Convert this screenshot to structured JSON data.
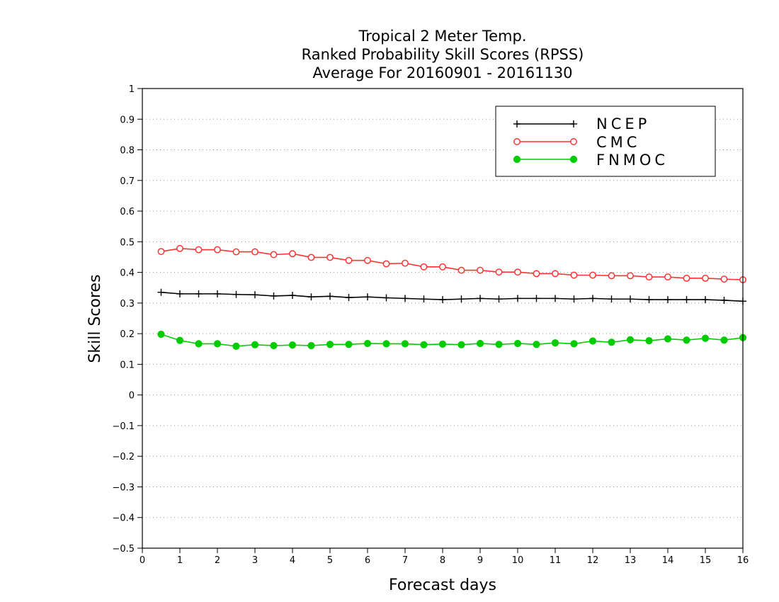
{
  "chart_data": {
    "type": "line",
    "title": [
      "Tropical 2 Meter Temp.",
      "Ranked Probability Skill Scores (RPSS)",
      "Average For 20160901 - 20161130"
    ],
    "xlabel": "Forecast days",
    "ylabel": "Skill Scores",
    "xlim": [
      0,
      16
    ],
    "ylim": [
      -0.5,
      1
    ],
    "xticks": [
      "0",
      "1",
      "2",
      "3",
      "4",
      "5",
      "6",
      "7",
      "8",
      "9",
      "10",
      "11",
      "12",
      "13",
      "14",
      "15",
      "16"
    ],
    "yticks": [
      "−0.5",
      "−0.4",
      "−0.3",
      "−0.2",
      "−0.1",
      "0",
      "0.1",
      "0.2",
      "0.3",
      "0.4",
      "0.5",
      "0.6",
      "0.7",
      "0.8",
      "0.9",
      "1"
    ],
    "grid": "horizontal-dotted",
    "legend_position": "top-right",
    "x": [
      0.5,
      1,
      1.5,
      2,
      2.5,
      3,
      3.5,
      4,
      4.5,
      5,
      5.5,
      6,
      6.5,
      7,
      7.5,
      8,
      8.5,
      9,
      9.5,
      10,
      10.5,
      11,
      11.5,
      12,
      12.5,
      13,
      13.5,
      14,
      14.5,
      15,
      15.5,
      16
    ],
    "series": [
      {
        "name": "NCEP",
        "color": "#000000",
        "marker": "plus",
        "values": [
          0.335,
          0.33,
          0.33,
          0.33,
          0.328,
          0.327,
          0.323,
          0.325,
          0.32,
          0.322,
          0.318,
          0.32,
          0.317,
          0.315,
          0.313,
          0.311,
          0.313,
          0.315,
          0.313,
          0.315,
          0.315,
          0.315,
          0.313,
          0.315,
          0.313,
          0.313,
          0.311,
          0.311,
          0.311,
          0.311,
          0.309,
          0.306
        ]
      },
      {
        "name": "CMC",
        "color": "#ff3333",
        "marker": "open-circle",
        "values": [
          0.468,
          0.478,
          0.474,
          0.474,
          0.467,
          0.467,
          0.458,
          0.461,
          0.449,
          0.449,
          0.439,
          0.439,
          0.428,
          0.43,
          0.418,
          0.418,
          0.407,
          0.407,
          0.401,
          0.401,
          0.396,
          0.396,
          0.391,
          0.391,
          0.389,
          0.389,
          0.385,
          0.385,
          0.381,
          0.381,
          0.378,
          0.376
        ]
      },
      {
        "name": "FNMOC",
        "color": "#00cc00",
        "marker": "filled-circle",
        "values": [
          0.198,
          0.178,
          0.167,
          0.167,
          0.159,
          0.164,
          0.161,
          0.163,
          0.161,
          0.165,
          0.165,
          0.168,
          0.167,
          0.167,
          0.164,
          0.166,
          0.164,
          0.168,
          0.165,
          0.168,
          0.165,
          0.17,
          0.167,
          0.176,
          0.172,
          0.18,
          0.177,
          0.183,
          0.179,
          0.185,
          0.179,
          0.187
        ]
      }
    ]
  }
}
